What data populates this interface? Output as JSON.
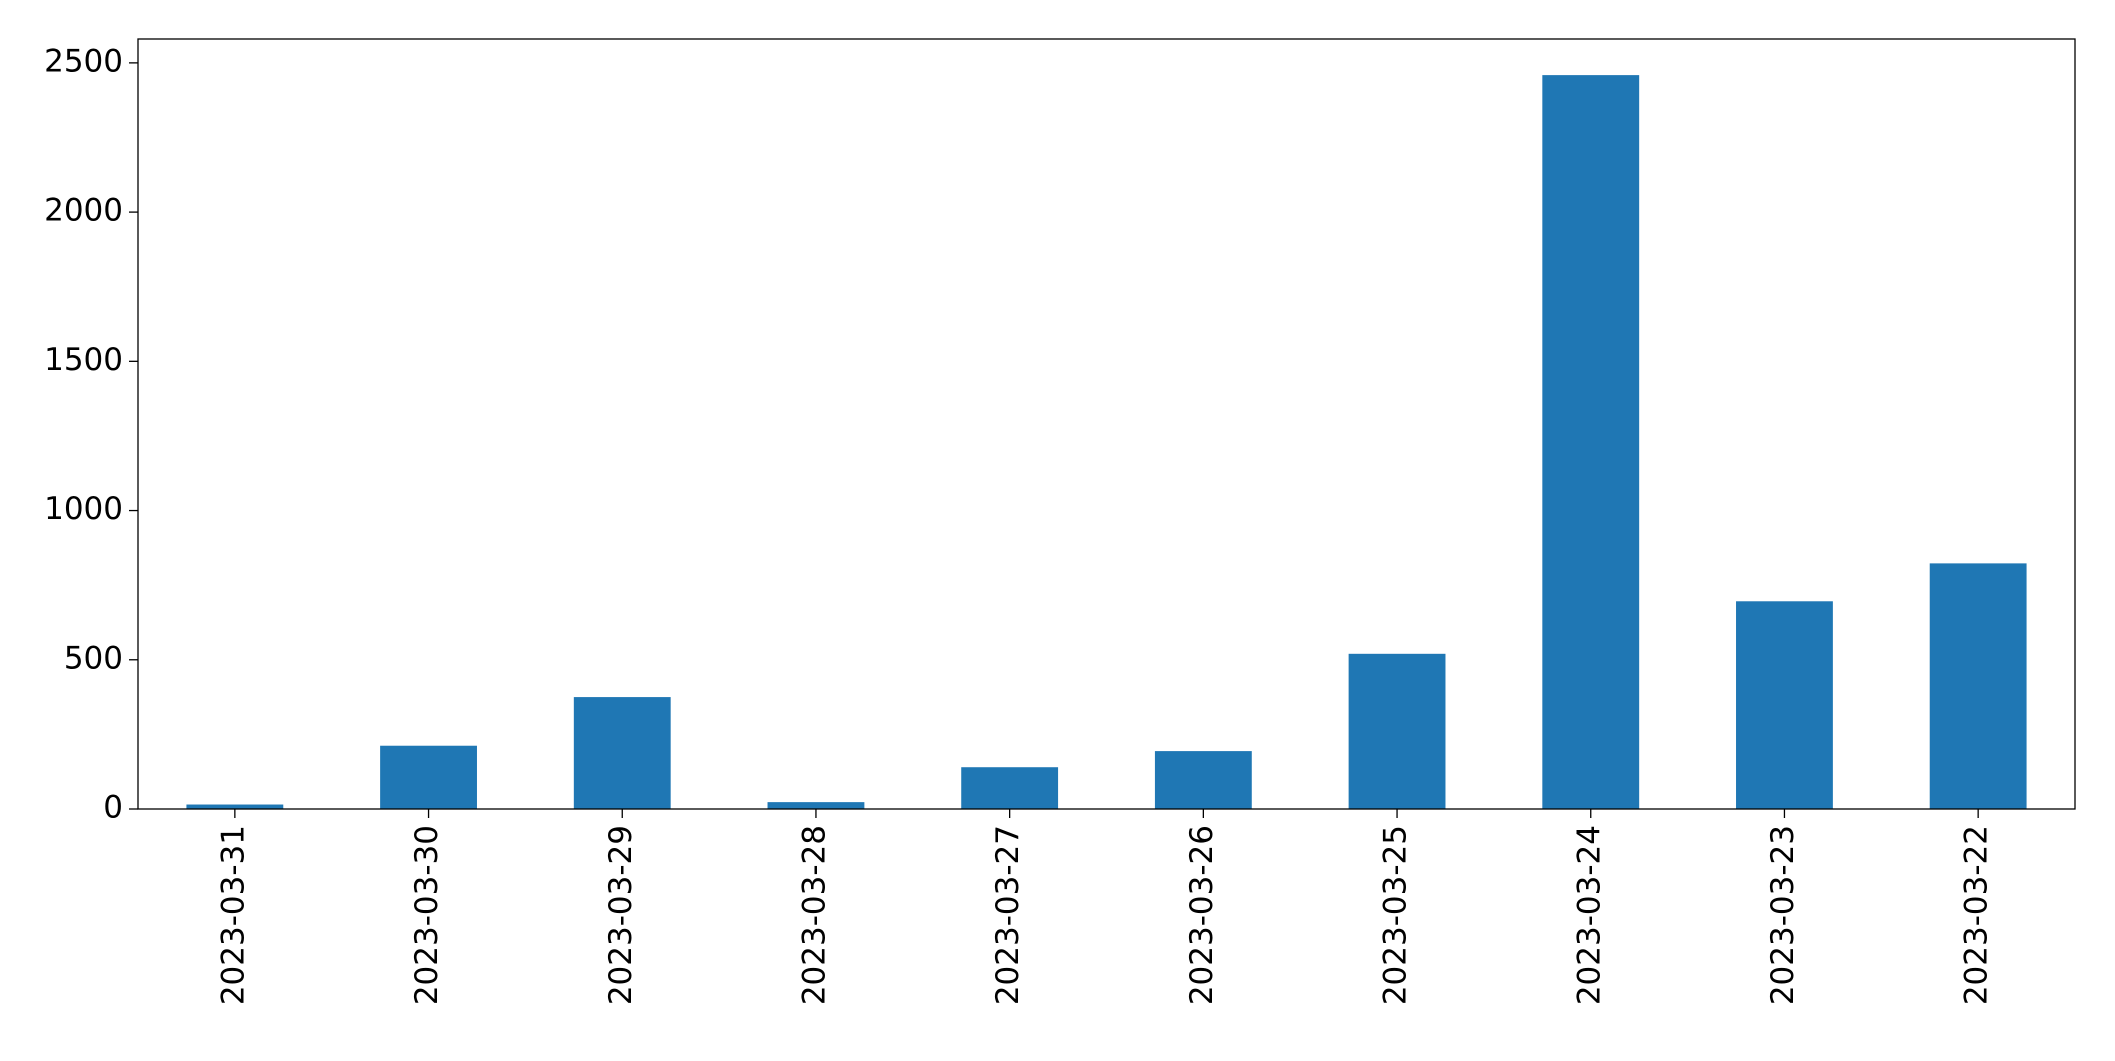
{
  "chart_data": {
    "type": "bar",
    "categories": [
      "2023-03-31",
      "2023-03-30",
      "2023-03-29",
      "2023-03-28",
      "2023-03-27",
      "2023-03-26",
      "2023-03-25",
      "2023-03-24",
      "2023-03-23",
      "2023-03-22"
    ],
    "values": [
      15,
      212,
      375,
      23,
      140,
      194,
      520,
      2459,
      696,
      823
    ],
    "color": "#1f77b4",
    "ylim": [
      0,
      2580
    ],
    "yticks": [
      0,
      500,
      1000,
      1500,
      2000,
      2500
    ],
    "grid": false
  }
}
